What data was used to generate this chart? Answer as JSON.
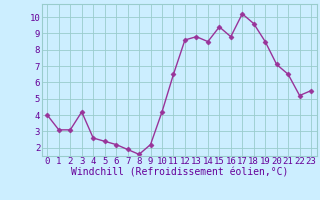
{
  "x": [
    0,
    1,
    2,
    3,
    4,
    5,
    6,
    7,
    8,
    9,
    10,
    11,
    12,
    13,
    14,
    15,
    16,
    17,
    18,
    19,
    20,
    21,
    22,
    23
  ],
  "y": [
    4.0,
    3.1,
    3.1,
    4.2,
    2.6,
    2.4,
    2.2,
    1.9,
    1.6,
    2.2,
    4.2,
    6.5,
    8.6,
    8.8,
    8.5,
    9.4,
    8.8,
    10.2,
    9.6,
    8.5,
    7.1,
    6.5,
    5.2,
    5.5
  ],
  "xlim": [
    -0.5,
    23.5
  ],
  "ylim": [
    1.5,
    10.8
  ],
  "yticks": [
    2,
    3,
    4,
    5,
    6,
    7,
    8,
    9,
    10
  ],
  "xticks": [
    0,
    1,
    2,
    3,
    4,
    5,
    6,
    7,
    8,
    9,
    10,
    11,
    12,
    13,
    14,
    15,
    16,
    17,
    18,
    19,
    20,
    21,
    22,
    23
  ],
  "xlabel": "Windchill (Refroidissement éolien,°C)",
  "line_color": "#993399",
  "marker_color": "#993399",
  "bg_color": "#cceeff",
  "grid_color": "#99cccc",
  "tick_label_color": "#660099",
  "xlabel_color": "#660099",
  "fig_bg_color": "#cceeff",
  "marker": "D",
  "marker_size": 2.5,
  "line_width": 1.0,
  "xlabel_fontsize": 7.0,
  "tick_fontsize": 6.5
}
